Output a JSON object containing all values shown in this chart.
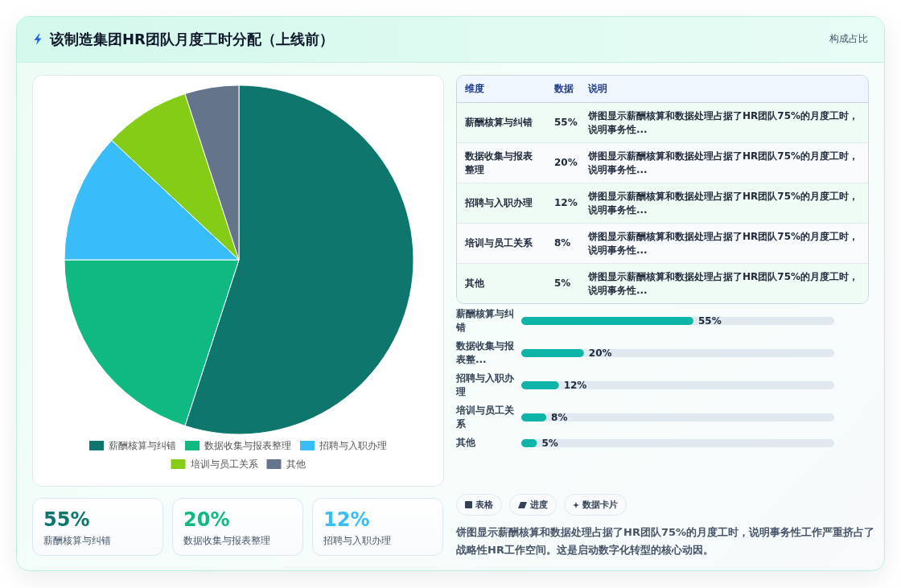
{
  "chart_data": [
    {
      "type": "pie",
      "title": "该制造集团HR团队月度工时分配（上线前）",
      "categories": [
        "薪酬核算与纠错",
        "数据收集与报表整理",
        "招聘与入职办理",
        "培训与员工关系",
        "其他"
      ],
      "values": [
        55,
        20,
        12,
        8,
        5
      ],
      "colors": [
        "#0f766e",
        "#10b981",
        "#38bdf8",
        "#84cc16",
        "#64748b"
      ],
      "legend": "bottom"
    },
    {
      "type": "other",
      "title": "构成占比",
      "categories": [
        "薪酬核算与纠错",
        "数据收集与报表整理",
        "招聘与入职办理",
        "培训与员工关系",
        "其他"
      ],
      "value_labels": [
        "55%",
        "20%",
        "12%",
        "8%",
        "5%"
      ],
      "annotations": [
        "维度",
        "数据",
        "说明",
        "饼图显示薪酬核算和数据处理占据了HR团队75%的月度工时，说明事务性...",
        "饼图显示薪酬核算和数据处理占据了HR团队75%的月度工时，说明事务性...",
        "饼图显示薪酬核算和数据处理占据了HR团队75%的月度工时，说明事务性...",
        "饼图显示薪酬核算和数据处理占据了HR团队75%的月度工时，说明事务性...",
        "饼图显示薪酬核算和数据处理占据了HR团队75%的月度工时，说明事务性..."
      ]
    },
    {
      "type": "bar",
      "orientation": "horizontal",
      "categories": [
        "薪酬核算与纠错",
        "数据收集与报表整...",
        "招聘与入职办理",
        "培训与员工关系",
        "其他"
      ],
      "values": [
        55,
        20,
        12,
        8,
        5
      ],
      "value_labels": [
        "55%",
        "20%",
        "12%",
        "8%",
        "5%"
      ],
      "color": "#0db5a6",
      "tick_labels": "y"
    },
    {
      "type": "other",
      "categories": [
        "薪酬核算与纠错",
        "数据收集与报表整理",
        "招聘与入职办理"
      ],
      "value_labels": [
        "55%",
        "20%",
        "12%"
      ]
    },
    {
      "type": "other",
      "annotations": [
        "表格",
        "进度",
        "数据卡片",
        "饼图显示薪酬核算和数据处理占据了HR团队75%的月度工时，说明事务性工作严重挤占了战略性HR工作空间。这是启动数字化转型的核心动因。"
      ]
    }
  ]
}
